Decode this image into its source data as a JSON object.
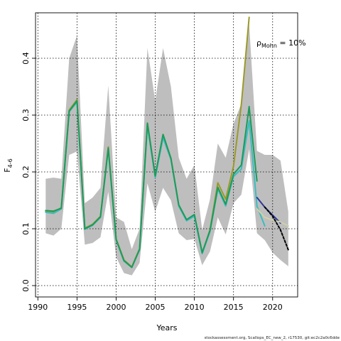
{
  "chart_data": {
    "type": "line",
    "title": "",
    "xlabel": "Years",
    "ylabel": "F",
    "ylabel_sub": "4-6",
    "xlim": [
      1989.7,
      2023.2
    ],
    "ylim": [
      -0.02,
      0.48
    ],
    "xticks": [
      1990,
      1995,
      2000,
      2005,
      2010,
      2015,
      2020
    ],
    "yticks": [
      0.0,
      0.1,
      0.2,
      0.3,
      0.4
    ],
    "ytick_labels": [
      "0.0",
      "0.1",
      "0.2",
      "0.3",
      "0.4"
    ],
    "grid": true,
    "annotation": {
      "rho_symbol": "ρ",
      "rho_sub": "Mohn",
      "rho_value": " = 10%"
    },
    "footer": "stockassessment.org, Scallops_EC_new_2, r17530, git:ec2c2a0c6dde",
    "confidence_band": {
      "x": [
        1991,
        1992,
        1993,
        1994,
        1995,
        1996,
        1997,
        1998,
        1999,
        2000,
        2001,
        2002,
        2003,
        2004,
        2005,
        2006,
        2007,
        2008,
        2009,
        2010,
        2011,
        2012,
        2013,
        2014,
        2015,
        2016,
        2017,
        2018,
        2019,
        2020,
        2021,
        2022
      ],
      "upper": [
        0.188,
        0.19,
        0.188,
        0.4,
        0.44,
        0.145,
        0.155,
        0.172,
        0.352,
        0.12,
        0.112,
        0.064,
        0.1,
        0.418,
        0.325,
        0.418,
        0.35,
        0.225,
        0.188,
        0.212,
        0.098,
        0.152,
        0.25,
        0.225,
        0.285,
        0.32,
        0.46,
        0.237,
        0.23,
        0.23,
        0.22,
        0.13
      ],
      "lower": [
        0.092,
        0.088,
        0.1,
        0.23,
        0.236,
        0.072,
        0.075,
        0.085,
        0.165,
        0.05,
        0.022,
        0.018,
        0.04,
        0.18,
        0.13,
        0.172,
        0.15,
        0.092,
        0.08,
        0.082,
        0.036,
        0.06,
        0.12,
        0.09,
        0.145,
        0.16,
        0.24,
        0.092,
        0.08,
        0.058,
        0.045,
        0.034
      ]
    },
    "series": [
      {
        "color": "#9a9a2a",
        "x": [
          1991,
          1992,
          1993,
          1994,
          1995,
          1996,
          1997,
          1998,
          1999,
          2000,
          2001,
          2002,
          2003,
          2004,
          2005,
          2006,
          2007,
          2008,
          2009,
          2010,
          2011,
          2012,
          2013,
          2014,
          2015,
          2016,
          2017
        ],
        "values": [
          0.131,
          0.129,
          0.137,
          0.309,
          0.327,
          0.101,
          0.108,
          0.122,
          0.244,
          0.082,
          0.045,
          0.033,
          0.065,
          0.285,
          0.192,
          0.264,
          0.224,
          0.141,
          0.115,
          0.124,
          0.057,
          0.098,
          0.181,
          0.152,
          0.21,
          0.319,
          0.472
        ]
      },
      {
        "color": "#3dbcc0",
        "x": [
          1991,
          1992,
          1993,
          1994,
          1995,
          1996,
          1997,
          1998,
          1999,
          2000,
          2001,
          2002,
          2003,
          2004,
          2005,
          2006,
          2007,
          2008,
          2009,
          2010,
          2011,
          2012,
          2013,
          2014,
          2015,
          2016,
          2017,
          2018,
          2019
        ],
        "values": [
          0.129,
          0.127,
          0.135,
          0.306,
          0.323,
          0.099,
          0.106,
          0.12,
          0.24,
          0.08,
          0.043,
          0.032,
          0.063,
          0.282,
          0.19,
          0.26,
          0.222,
          0.14,
          0.114,
          0.122,
          0.056,
          0.095,
          0.17,
          0.14,
          0.192,
          0.205,
          0.29,
          0.14,
          0.105
        ]
      },
      {
        "color": "#2e3a9a",
        "x": [
          2018,
          2019,
          2020,
          2021
        ],
        "values": [
          0.155,
          0.138,
          0.124,
          0.11
        ]
      },
      {
        "color": "#1e9a5a",
        "x": [
          1991,
          1992,
          1993,
          1994,
          1995,
          1996,
          1997,
          1998,
          1999,
          2000,
          2001,
          2002,
          2003,
          2004,
          2005,
          2006,
          2007,
          2008,
          2009,
          2010,
          2011,
          2012,
          2013,
          2014,
          2015,
          2016,
          2017,
          2018
        ],
        "values": [
          0.132,
          0.131,
          0.136,
          0.307,
          0.325,
          0.1,
          0.107,
          0.121,
          0.242,
          0.081,
          0.044,
          0.032,
          0.064,
          0.286,
          0.193,
          0.266,
          0.224,
          0.142,
          0.116,
          0.125,
          0.058,
          0.097,
          0.173,
          0.143,
          0.196,
          0.212,
          0.315,
          0.184
        ]
      },
      {
        "color": "#cfd0a8",
        "x": [
          2018,
          2019,
          2020,
          2021,
          2022
        ],
        "values": [
          0.135,
          0.12,
          0.115,
          0.112,
          0.105
        ]
      },
      {
        "color": "#000000",
        "dashed": true,
        "x": [
          2019,
          2020,
          2021,
          2022
        ],
        "values": [
          0.138,
          0.122,
          0.098,
          0.063
        ]
      }
    ]
  }
}
